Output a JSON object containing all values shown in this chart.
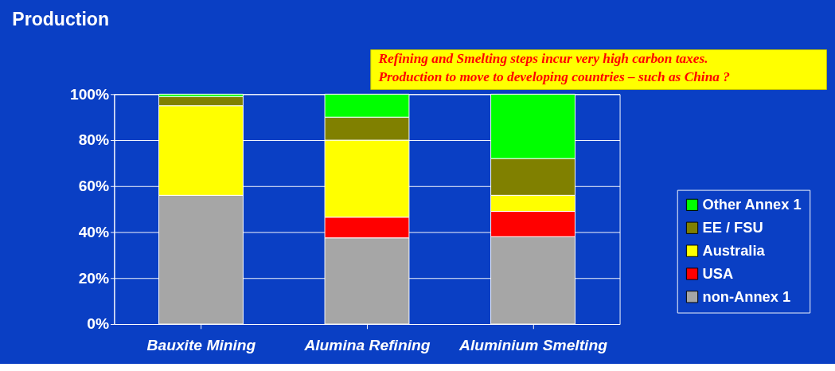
{
  "chart_data": {
    "type": "bar",
    "stacked": true,
    "title": "Production",
    "annotations": [
      "Refining and Smelting steps incur very high carbon taxes.\nProduction to move to developing countries – such as China ?"
    ],
    "categories": [
      "Bauxite Mining",
      "Alumina Refining",
      "Aluminium Smelting"
    ],
    "series": [
      {
        "name": "non-Annex 1",
        "color": "#a6a6a6",
        "values": [
          56,
          37.5,
          38
        ]
      },
      {
        "name": "USA",
        "color": "#ff0000",
        "values": [
          0,
          9,
          11
        ]
      },
      {
        "name": "Australia",
        "color": "#ffff00",
        "values": [
          39,
          33.5,
          7
        ]
      },
      {
        "name": "EE / FSU",
        "color": "#808000",
        "values": [
          4,
          10,
          16
        ]
      },
      {
        "name": "Other Annex 1",
        "color": "#00ff00",
        "values": [
          1,
          10,
          28
        ]
      }
    ],
    "ylim": [
      0,
      100
    ],
    "yticks": [
      {
        "value": 0,
        "label": "0%"
      },
      {
        "value": 20,
        "label": "20%"
      },
      {
        "value": 40,
        "label": "40%"
      },
      {
        "value": 60,
        "label": "60%"
      },
      {
        "value": 80,
        "label": "80%"
      },
      {
        "value": 100,
        "label": "100%"
      }
    ],
    "grid": "y",
    "legend": "right"
  }
}
